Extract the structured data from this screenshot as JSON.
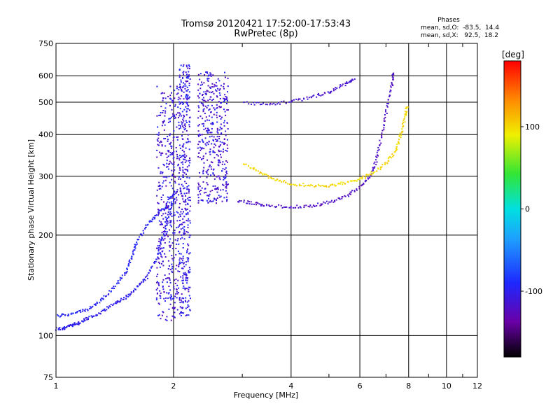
{
  "chart_data": {
    "type": "scatter",
    "title": "Tromsø 20120421 17:52:00-17:53:43",
    "subtitle": "RwPretec (8p)",
    "xlabel": "Frequency [MHz]",
    "ylabel": "Stationary phase Virtual Height [km]",
    "x_scale": "log",
    "y_scale": "log",
    "xlim": [
      1,
      12
    ],
    "ylim": [
      75,
      750
    ],
    "x_ticks": [
      1,
      2,
      4,
      6,
      8,
      10,
      12
    ],
    "y_ticks": [
      75,
      100,
      200,
      300,
      400,
      500,
      600,
      750
    ],
    "grid": true,
    "colorbar": {
      "label": "[deg]",
      "range": [
        -180,
        180
      ],
      "ticks": [
        100,
        0,
        -100
      ]
    },
    "phases_box": {
      "title": "Phases",
      "line1": "mean, sd,O:  -83.5,  14.4",
      "line2": "mean, sd,X:   92.5,  18.2"
    },
    "series": [
      {
        "trace": "lower-F-trace",
        "phase": -100,
        "points": [
          [
            1.0,
            105
          ],
          [
            1.05,
            106
          ],
          [
            1.1,
            108
          ],
          [
            1.15,
            110
          ],
          [
            1.2,
            113
          ],
          [
            1.3,
            118
          ],
          [
            1.4,
            125
          ],
          [
            1.5,
            130
          ],
          [
            1.6,
            140
          ],
          [
            1.7,
            150
          ],
          [
            1.8,
            170
          ],
          [
            1.85,
            190
          ],
          [
            1.9,
            210
          ],
          [
            1.95,
            240
          ],
          [
            2.0,
            260
          ]
        ]
      },
      {
        "trace": "upper-F-trace",
        "phase": -95,
        "points": [
          [
            1.0,
            115
          ],
          [
            1.1,
            117
          ],
          [
            1.2,
            120
          ],
          [
            1.3,
            128
          ],
          [
            1.4,
            140
          ],
          [
            1.5,
            155
          ],
          [
            1.55,
            170
          ],
          [
            1.6,
            190
          ],
          [
            1.7,
            215
          ],
          [
            1.8,
            230
          ],
          [
            1.9,
            245
          ],
          [
            2.0,
            270
          ]
        ]
      },
      {
        "trace": "F2-O-trace",
        "phase": -120,
        "points": [
          [
            2.9,
            255
          ],
          [
            3.2,
            250
          ],
          [
            3.5,
            246
          ],
          [
            4.0,
            244
          ],
          [
            4.5,
            246
          ],
          [
            5.0,
            252
          ],
          [
            5.5,
            262
          ],
          [
            6.0,
            280
          ],
          [
            6.4,
            305
          ],
          [
            6.6,
            340
          ],
          [
            6.8,
            400
          ],
          [
            7.0,
            480
          ],
          [
            7.2,
            560
          ],
          [
            7.3,
            620
          ]
        ]
      },
      {
        "trace": "F2-X-trace",
        "phase": 100,
        "points": [
          [
            3.0,
            330
          ],
          [
            3.3,
            310
          ],
          [
            3.6,
            295
          ],
          [
            4.0,
            286
          ],
          [
            4.5,
            283
          ],
          [
            5.0,
            283
          ],
          [
            5.5,
            288
          ],
          [
            6.0,
            296
          ],
          [
            6.5,
            310
          ],
          [
            7.0,
            330
          ],
          [
            7.4,
            360
          ],
          [
            7.6,
            400
          ],
          [
            7.8,
            450
          ],
          [
            7.9,
            490
          ]
        ]
      },
      {
        "trace": "multi-hop-trace",
        "phase": -115,
        "points": [
          [
            3.0,
            500
          ],
          [
            3.5,
            495
          ],
          [
            4.0,
            505
          ],
          [
            4.5,
            520
          ],
          [
            5.0,
            540
          ],
          [
            5.5,
            570
          ],
          [
            5.8,
            590
          ]
        ]
      }
    ],
    "spread_columns": [
      {
        "x_range": [
          1.8,
          2.05
        ],
        "y_range": [
          110,
          560
        ],
        "phase": -110
      },
      {
        "x_range": [
          2.05,
          2.2
        ],
        "y_range": [
          115,
          650
        ],
        "phase": -105
      },
      {
        "x_range": [
          2.3,
          2.75
        ],
        "y_range": [
          250,
          620
        ],
        "phase": -110
      }
    ]
  }
}
